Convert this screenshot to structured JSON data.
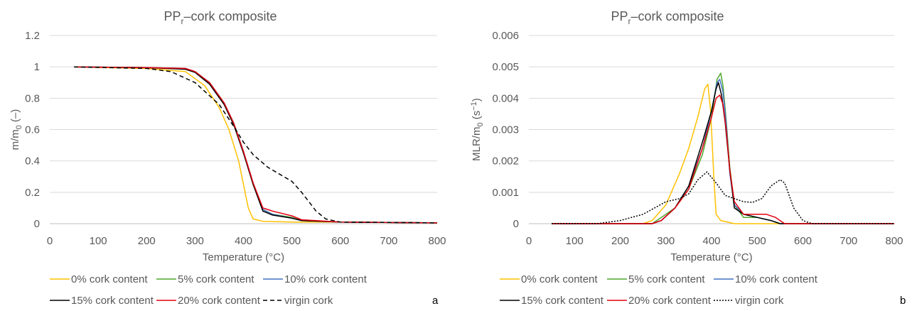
{
  "chart_data": [
    {
      "type": "line",
      "panel_letter": "a",
      "title_main": "PP",
      "title_sub": "r",
      "title_rest": "–cork composite",
      "ylabel_main": "m/m",
      "ylabel_sub": "0",
      "ylabel_rest": " (–)",
      "xlabel": "Temperature (°C)",
      "xlim": [
        0,
        800
      ],
      "ylim": [
        0,
        1.2
      ],
      "xticks": [
        0,
        100,
        200,
        300,
        400,
        500,
        600,
        700,
        800
      ],
      "xtick_labels": [
        "0",
        "100",
        "200",
        "300",
        "400",
        "500",
        "600",
        "700",
        "800"
      ],
      "yticks": [
        0,
        0.2,
        0.4,
        0.6,
        0.8,
        1,
        1.2
      ],
      "ytick_labels": [
        "0",
        "0.2",
        "0.4",
        "0.6",
        "0.8",
        "1",
        "1.2"
      ],
      "grid": true,
      "legend_position": "bottom",
      "series": [
        {
          "name": "0% cork content",
          "color": "#ffc000",
          "dash": "solid",
          "x": [
            50,
            200,
            280,
            320,
            350,
            370,
            390,
            400,
            410,
            420,
            440,
            500,
            600,
            800
          ],
          "y": [
            1,
            0.99,
            0.97,
            0.88,
            0.74,
            0.6,
            0.4,
            0.25,
            0.1,
            0.03,
            0.015,
            0.01,
            0.01,
            0.005
          ]
        },
        {
          "name": "5% cork content",
          "color": "#4ea72e",
          "dash": "solid",
          "x": [
            50,
            200,
            280,
            300,
            330,
            360,
            380,
            400,
            420,
            440,
            460,
            500,
            520,
            600,
            800
          ],
          "y": [
            1,
            0.995,
            0.99,
            0.97,
            0.9,
            0.77,
            0.64,
            0.46,
            0.25,
            0.09,
            0.06,
            0.04,
            0.02,
            0.01,
            0.005
          ]
        },
        {
          "name": "10% cork content",
          "color": "#4472c4",
          "dash": "solid",
          "x": [
            50,
            200,
            280,
            300,
            330,
            360,
            380,
            400,
            420,
            440,
            460,
            500,
            520,
            600,
            800
          ],
          "y": [
            1,
            0.995,
            0.99,
            0.97,
            0.9,
            0.77,
            0.64,
            0.46,
            0.26,
            0.09,
            0.06,
            0.035,
            0.02,
            0.01,
            0.005
          ]
        },
        {
          "name": "15% cork content",
          "color": "#000000",
          "dash": "solid",
          "x": [
            50,
            200,
            280,
            300,
            330,
            360,
            380,
            400,
            420,
            440,
            460,
            500,
            520,
            600,
            800
          ],
          "y": [
            1,
            0.995,
            0.985,
            0.965,
            0.89,
            0.76,
            0.63,
            0.45,
            0.25,
            0.08,
            0.055,
            0.035,
            0.02,
            0.01,
            0.005
          ]
        },
        {
          "name": "20% cork content",
          "color": "#e3000f",
          "dash": "solid",
          "x": [
            50,
            200,
            280,
            300,
            330,
            360,
            380,
            400,
            420,
            440,
            460,
            500,
            520,
            600,
            800
          ],
          "y": [
            1,
            0.995,
            0.99,
            0.97,
            0.9,
            0.77,
            0.64,
            0.46,
            0.26,
            0.1,
            0.08,
            0.05,
            0.025,
            0.01,
            0.005
          ]
        },
        {
          "name": "virgin cork",
          "color": "#000000",
          "dash": "dashed",
          "x": [
            50,
            200,
            250,
            300,
            350,
            380,
            400,
            420,
            450,
            500,
            520,
            550,
            570,
            600,
            700,
            800
          ],
          "y": [
            1,
            0.99,
            0.97,
            0.9,
            0.76,
            0.62,
            0.52,
            0.44,
            0.36,
            0.27,
            0.2,
            0.08,
            0.03,
            0.01,
            0.008,
            0.005
          ]
        }
      ]
    },
    {
      "type": "line",
      "panel_letter": "b",
      "title_main": "PP",
      "title_sub": "r",
      "title_rest": "–cork composite",
      "ylabel_main": "MLR/m",
      "ylabel_sub": "0",
      "ylabel_rest": " (s",
      "ylabel_sup": "−1",
      "ylabel_close": ")",
      "xlabel": "Temperature (°C)",
      "xlim": [
        0,
        800
      ],
      "ylim": [
        0,
        0.006
      ],
      "xticks": [
        0,
        100,
        200,
        300,
        400,
        500,
        600,
        700,
        800
      ],
      "xtick_labels": [
        "0",
        "100",
        "200",
        "300",
        "400",
        "500",
        "600",
        "700",
        "800"
      ],
      "yticks": [
        0,
        0.001,
        0.002,
        0.003,
        0.004,
        0.005,
        0.006
      ],
      "ytick_labels": [
        "0",
        "0.001",
        "0.002",
        "0.003",
        "0.004",
        "0.005",
        "0.006"
      ],
      "grid": true,
      "legend_position": "bottom",
      "series": [
        {
          "name": "0% cork content",
          "color": "#ffc000",
          "dash": "solid",
          "x": [
            50,
            250,
            270,
            300,
            330,
            350,
            370,
            385,
            392,
            398,
            405,
            410,
            420,
            450,
            800
          ],
          "y": [
            0,
            0,
            0.0001,
            0.0006,
            0.0016,
            0.0024,
            0.0034,
            0.0043,
            0.00445,
            0.0036,
            0.0015,
            0.0003,
            0.0001,
            0,
            0
          ]
        },
        {
          "name": "5% cork content",
          "color": "#4ea72e",
          "dash": "solid",
          "x": [
            50,
            270,
            290,
            320,
            350,
            380,
            400,
            412,
            420,
            425,
            432,
            440,
            450,
            470,
            500,
            530,
            550,
            800
          ],
          "y": [
            0,
            0,
            0.0002,
            0.0005,
            0.0011,
            0.0022,
            0.0034,
            0.0046,
            0.0048,
            0.0044,
            0.0033,
            0.0018,
            0.0006,
            0.0002,
            0.0002,
            0.0001,
            0,
            0
          ]
        },
        {
          "name": "10% cork content",
          "color": "#4472c4",
          "dash": "solid",
          "x": [
            50,
            270,
            290,
            320,
            350,
            380,
            400,
            412,
            418,
            425,
            432,
            440,
            450,
            470,
            500,
            530,
            550,
            800
          ],
          "y": [
            0,
            0,
            0.0001,
            0.0005,
            0.0012,
            0.0024,
            0.0036,
            0.0045,
            0.0046,
            0.0042,
            0.0032,
            0.0016,
            0.0006,
            0.0003,
            0.0002,
            0.0001,
            0,
            0
          ]
        },
        {
          "name": "15% cork content",
          "color": "#000000",
          "dash": "solid",
          "x": [
            50,
            270,
            290,
            320,
            350,
            380,
            400,
            410,
            415,
            422,
            430,
            440,
            450,
            470,
            500,
            530,
            550,
            800
          ],
          "y": [
            0,
            0,
            0.0001,
            0.0005,
            0.0012,
            0.0026,
            0.0036,
            0.0043,
            0.0045,
            0.0041,
            0.0032,
            0.0017,
            0.0005,
            0.0003,
            0.0002,
            0.0001,
            0,
            0
          ]
        },
        {
          "name": "20% cork content",
          "color": "#e3000f",
          "dash": "solid",
          "x": [
            50,
            270,
            290,
            320,
            350,
            380,
            400,
            410,
            418,
            425,
            432,
            440,
            450,
            470,
            500,
            520,
            540,
            560,
            800
          ],
          "y": [
            0,
            0,
            0.0001,
            0.0005,
            0.0011,
            0.0024,
            0.0034,
            0.004,
            0.0041,
            0.0038,
            0.003,
            0.0017,
            0.0007,
            0.0003,
            0.0003,
            0.0003,
            0.0002,
            0,
            0
          ]
        },
        {
          "name": "virgin cork",
          "color": "#000000",
          "dash": "dotted",
          "x": [
            50,
            150,
            200,
            250,
            300,
            330,
            350,
            370,
            390,
            410,
            430,
            450,
            470,
            490,
            510,
            530,
            550,
            560,
            580,
            600,
            620,
            800
          ],
          "y": [
            0,
            0,
            0.0001,
            0.0003,
            0.0007,
            0.0008,
            0.00095,
            0.0014,
            0.00165,
            0.0013,
            0.0009,
            0.0008,
            0.0007,
            0.00068,
            0.0008,
            0.0012,
            0.0014,
            0.0013,
            0.0005,
            0.0001,
            0,
            0
          ]
        }
      ]
    }
  ]
}
